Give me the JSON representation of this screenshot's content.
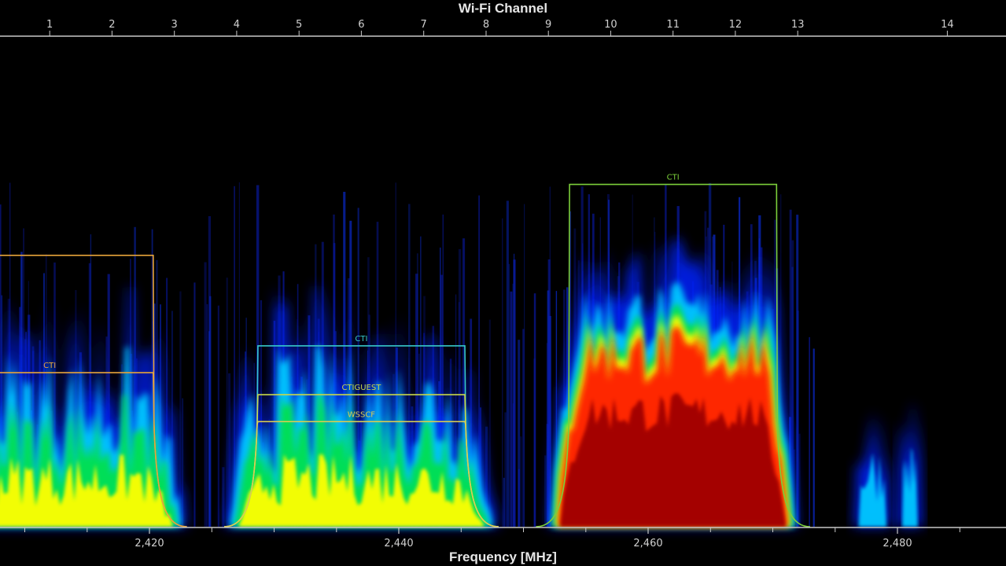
{
  "chart_data": {
    "type": "spectrogram",
    "top_axis": {
      "label": "Wi-Fi Channel",
      "channels": [
        {
          "ch": "1",
          "freq": 2412
        },
        {
          "ch": "2",
          "freq": 2417
        },
        {
          "ch": "3",
          "freq": 2422
        },
        {
          "ch": "4",
          "freq": 2427
        },
        {
          "ch": "5",
          "freq": 2432
        },
        {
          "ch": "6",
          "freq": 2437
        },
        {
          "ch": "7",
          "freq": 2442
        },
        {
          "ch": "8",
          "freq": 2447
        },
        {
          "ch": "9",
          "freq": 2452
        },
        {
          "ch": "10",
          "freq": 2457
        },
        {
          "ch": "11",
          "freq": 2462
        },
        {
          "ch": "12",
          "freq": 2467
        },
        {
          "ch": "13",
          "freq": 2472
        },
        {
          "ch": "14",
          "freq": 2484
        }
      ]
    },
    "bottom_axis": {
      "label": "Frequency [MHz]",
      "range": [
        2408,
        2490
      ],
      "major_ticks": [
        {
          "label": "2,420",
          "value": 2420
        },
        {
          "label": "2,440",
          "value": 2440
        },
        {
          "label": "2,460",
          "value": 2460
        },
        {
          "label": "2,480",
          "value": 2480
        }
      ],
      "minor_tick_step": 5
    },
    "networks": [
      {
        "name": "",
        "center_freq": 2412,
        "level": 0.555,
        "color": "#e7a43a"
      },
      {
        "name": "CTI",
        "center_freq": 2412,
        "level": 0.315,
        "color": "#e7a43a"
      },
      {
        "name": "CTI",
        "center_freq": 2437,
        "level": 0.37,
        "color": "#37c9c9"
      },
      {
        "name": "CTIGUEST",
        "center_freq": 2437,
        "level": 0.27,
        "color": "#c9d84a"
      },
      {
        "name": "WSSCF",
        "center_freq": 2437,
        "level": 0.215,
        "color": "#dccd50"
      },
      {
        "name": "CTI",
        "center_freq": 2462,
        "level": 0.7,
        "color": "#7ccf3a"
      }
    ],
    "signals": [
      {
        "center_freq": 2412,
        "channel_width_mhz": 22,
        "intensity": "medium"
      },
      {
        "center_freq": 2437,
        "channel_width_mhz": 22,
        "intensity": "medium"
      },
      {
        "center_freq": 2462,
        "channel_width_mhz": 20,
        "intensity": "high"
      },
      {
        "center_freq": 2478,
        "channel_width_mhz": 3,
        "intensity": "low"
      },
      {
        "center_freq": 2481,
        "channel_width_mhz": 2,
        "intensity": "low"
      }
    ],
    "colors": {
      "background": "#000000",
      "axis": "#c8c8c8",
      "colormap": [
        "#000a6e",
        "#0022ff",
        "#00c8ff",
        "#00e050",
        "#ffff00",
        "#ff1a00",
        "#a00000"
      ]
    }
  }
}
